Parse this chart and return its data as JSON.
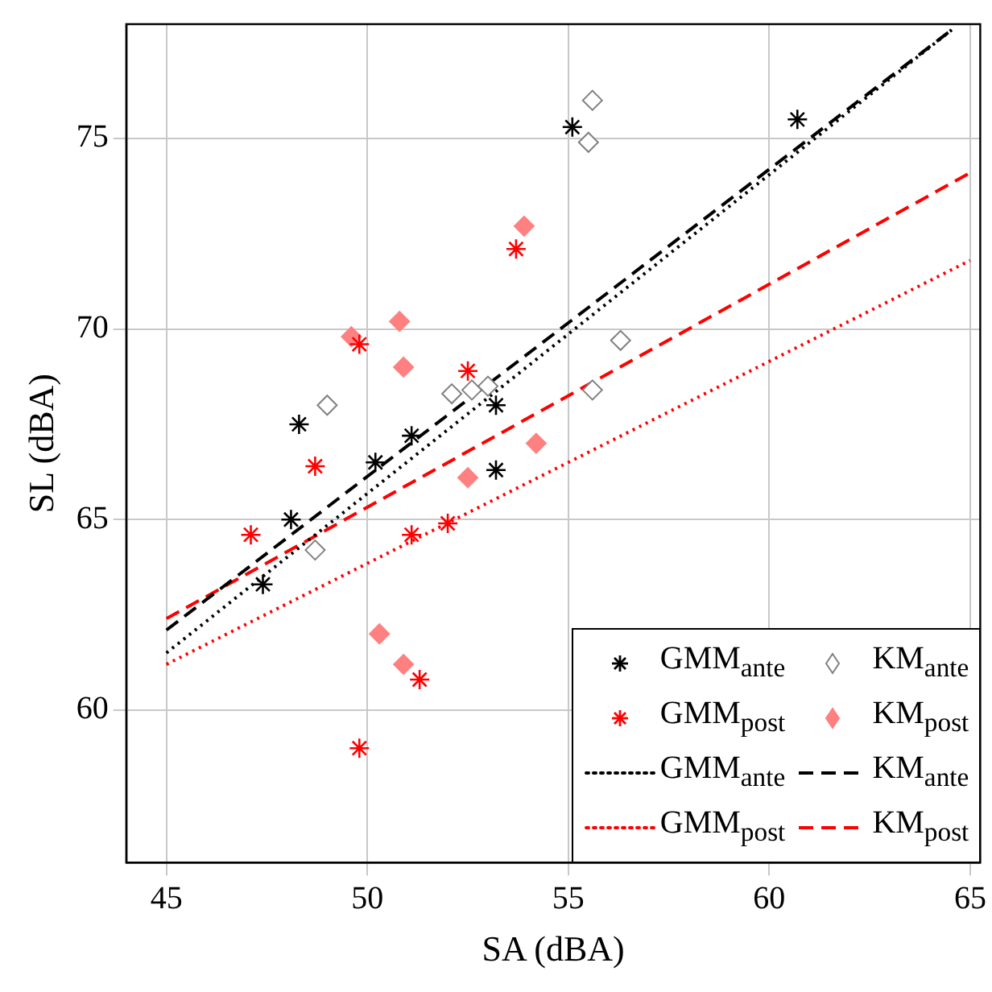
{
  "chart_data": {
    "type": "scatter",
    "xlabel": "SA (dBA)",
    "ylabel": "SL (dBA)",
    "xlim": [
      44,
      65.25
    ],
    "ylim": [
      56,
      78
    ],
    "xticks": [
      45,
      50,
      55,
      60,
      65
    ],
    "yticks": [
      60,
      65,
      70,
      75
    ],
    "grid": true,
    "legend": "bottom right",
    "series": [
      {
        "name": "GMM$_{ante}$",
        "type": "scatter",
        "marker": "cross",
        "color": "#000000",
        "x": [
          47.4,
          48.1,
          48.3,
          50.2,
          51.1,
          53.2,
          53.2,
          55.1,
          60.7
        ],
        "values": [
          63.3,
          65.0,
          67.5,
          66.5,
          67.2,
          68.0,
          66.3,
          75.3,
          75.5
        ]
      },
      {
        "name": "KM$_{ante}$",
        "type": "scatter",
        "marker": "diamond",
        "color": "#808080",
        "x": [
          49.0,
          48.7,
          52.1,
          52.6,
          53.0,
          55.6,
          55.5,
          56.3,
          55.6
        ],
        "values": [
          68.0,
          64.2,
          68.3,
          68.4,
          68.5,
          76.0,
          74.9,
          69.7,
          68.4
        ]
      },
      {
        "name": "GMM$_{post}$",
        "type": "scatter",
        "marker": "cross",
        "color": "#ff0000",
        "x": [
          47.1,
          48.7,
          49.8,
          52.5,
          53.7,
          51.1,
          52.0,
          51.3,
          49.8
        ],
        "values": [
          64.6,
          66.4,
          69.6,
          68.9,
          72.1,
          64.6,
          64.9,
          60.8,
          59.0
        ]
      },
      {
        "name": "KM$_{post}$",
        "type": "scatter",
        "marker": "diamond",
        "color": "#ff8080",
        "x": [
          49.6,
          50.8,
          50.9,
          53.9,
          52.5,
          54.2,
          50.3,
          50.9
        ],
        "values": [
          69.8,
          70.2,
          69.0,
          72.7,
          66.1,
          67.0,
          62.0,
          61.2
        ]
      },
      {
        "name": "GMM$_{ante}$",
        "type": "line",
        "marker": "none",
        "line_style": "dotted",
        "color": "#000000",
        "x": [
          45,
          64.6
        ],
        "values": [
          61.5,
          77.9
        ]
      },
      {
        "name": "KM$_{ante}$",
        "type": "line",
        "marker": "none",
        "line_style": "dashed",
        "color": "#000000",
        "x": [
          45,
          64.6
        ],
        "values": [
          62.1,
          77.9
        ]
      },
      {
        "name": "GMM$_{post}$",
        "type": "line",
        "marker": "none",
        "line_style": "dotted",
        "color": "#ff0000",
        "x": [
          45,
          65
        ],
        "values": [
          61.2,
          71.8
        ]
      },
      {
        "name": "KM$_{post}$",
        "type": "line",
        "marker": "none",
        "line_style": "dashed",
        "color": "#ff0000",
        "x": [
          45,
          65
        ],
        "values": [
          62.4,
          74.1
        ]
      }
    ]
  }
}
